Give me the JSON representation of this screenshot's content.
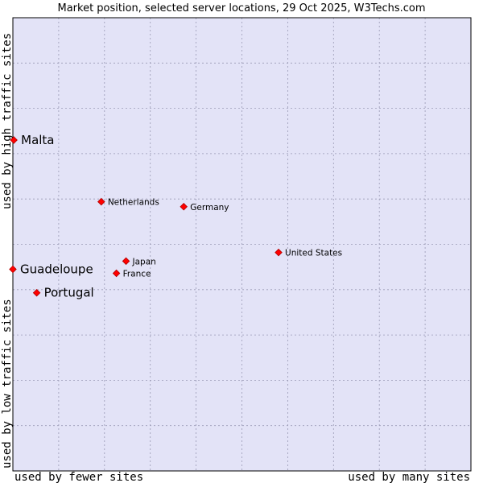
{
  "chart_data": {
    "type": "scatter",
    "title": "Market position, selected server locations, 29 Oct 2025, W3Techs.com",
    "xlabel_low": "used by fewer sites",
    "xlabel_high": "used by many sites",
    "ylabel_low": "used by low traffic sites",
    "ylabel_high": "used by high traffic sites",
    "xlim": [
      0,
      100
    ],
    "ylim": [
      0,
      100
    ],
    "grid": true,
    "colors": {
      "plot_bg": "#e3e3f7",
      "grid": "#9a9ab5",
      "border": "#000000",
      "marker": "#ff0000",
      "marker_edge": "#b00000"
    },
    "points": [
      {
        "label": "Malta",
        "x": 0.2,
        "y": 73.0,
        "emphasis": true
      },
      {
        "label": "Guadeloupe",
        "x": 0.0,
        "y": 44.5,
        "emphasis": true
      },
      {
        "label": "Portugal",
        "x": 5.2,
        "y": 39.3,
        "emphasis": true
      },
      {
        "label": "Netherlands",
        "x": 19.3,
        "y": 59.4,
        "emphasis": false
      },
      {
        "label": "Germany",
        "x": 37.3,
        "y": 58.3,
        "emphasis": false
      },
      {
        "label": "United States",
        "x": 58.0,
        "y": 48.2,
        "emphasis": false
      },
      {
        "label": "Japan",
        "x": 24.7,
        "y": 46.3,
        "emphasis": false
      },
      {
        "label": "France",
        "x": 22.6,
        "y": 43.6,
        "emphasis": false
      }
    ]
  }
}
